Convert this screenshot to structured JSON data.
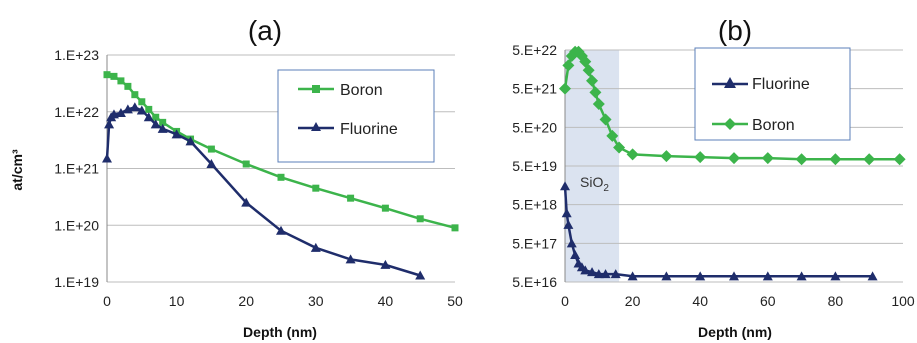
{
  "chart_data": [
    {
      "type": "scatter",
      "panel_label": "(a)",
      "xlabel": "Depth  (nm)",
      "ylabel": "at/cm³",
      "xlim": [
        0,
        50
      ],
      "ylim": [
        1e+19,
        1e+23
      ],
      "yscale": "log",
      "xticks": [
        "0",
        "10",
        "20",
        "30",
        "40",
        "50"
      ],
      "yticks": [
        "1.E+19",
        "1.E+20",
        "1.E+21",
        "1.E+22",
        "1.E+23"
      ],
      "grid": "horizontal",
      "legend_position": "top-right",
      "series": [
        {
          "name": "Boron",
          "marker": "square",
          "color": "#3cb44b",
          "x": [
            0,
            1,
            2,
            3,
            4,
            5,
            6,
            7,
            8,
            10,
            12,
            15,
            20,
            25,
            30,
            35,
            40,
            45,
            50
          ],
          "y": [
            4.5e+22,
            4.2e+22,
            3.5e+22,
            2.8e+22,
            2e+22,
            1.5e+22,
            1.1e+22,
            8e+21,
            6.5e+21,
            4.5e+21,
            3.3e+21,
            2.2e+21,
            1.2e+21,
            7e+20,
            4.5e+20,
            3e+20,
            2e+20,
            1.3e+20,
            9e+19
          ]
        },
        {
          "name": "Fluorine",
          "marker": "triangle",
          "color": "#1f2d6b",
          "x": [
            0,
            0.3,
            0.6,
            1,
            2,
            3,
            4,
            5,
            6,
            7,
            8,
            10,
            12,
            15,
            20,
            25,
            30,
            35,
            40,
            45
          ],
          "y": [
            1.5e+21,
            6e+21,
            8e+21,
            9e+21,
            9.5e+21,
            1.1e+22,
            1.2e+22,
            1.05e+22,
            8e+21,
            6e+21,
            5e+21,
            4e+21,
            3e+21,
            1.2e+21,
            2.5e+20,
            8e+19,
            4e+19,
            2.5e+19,
            2e+19,
            1.3e+19
          ]
        }
      ]
    },
    {
      "type": "scatter",
      "panel_label": "(b)",
      "xlabel": "Depth (nm)",
      "xlim": [
        0,
        100
      ],
      "ylim": [
        5e+16,
        5e+22
      ],
      "yscale": "log",
      "xticks": [
        "0",
        "20",
        "40",
        "60",
        "80",
        "100"
      ],
      "yticks": [
        "5.E+16",
        "5.E+17",
        "5.E+18",
        "5.E+19",
        "5.E+20",
        "5.E+21",
        "5.E+22"
      ],
      "grid": "horizontal",
      "legend_position": "top-right",
      "shaded_region": {
        "x": [
          0,
          16
        ],
        "label": "SiO",
        "label_sub": "2",
        "color": "#dbe3f0"
      },
      "series": [
        {
          "name": "Fluorine",
          "marker": "triangle",
          "color": "#1f2d6b",
          "x": [
            0,
            0.5,
            1,
            2,
            3,
            4,
            5,
            6,
            8,
            10,
            12,
            15,
            20,
            30,
            40,
            50,
            60,
            70,
            80,
            91
          ],
          "y": [
            1.5e+19,
            3e+18,
            1.5e+18,
            5e+17,
            2.5e+17,
            1.5e+17,
            1.2e+17,
            1e+17,
            9e+16,
            8e+16,
            8e+16,
            8e+16,
            7e+16,
            7e+16,
            7e+16,
            7e+16,
            7e+16,
            7e+16,
            7e+16,
            7e+16
          ]
        },
        {
          "name": "Boron",
          "marker": "diamond",
          "color": "#3cb44b",
          "x": [
            0,
            1,
            2,
            3,
            4,
            5,
            6,
            7,
            8,
            9,
            10,
            12,
            14,
            16,
            20,
            30,
            40,
            50,
            60,
            70,
            80,
            90,
            99
          ],
          "y": [
            5e+21,
            2e+22,
            3.5e+22,
            4.5e+22,
            4.5e+22,
            3.5e+22,
            2.5e+22,
            1.5e+22,
            8e+21,
            4e+21,
            2e+21,
            8e+20,
            3e+20,
            1.5e+20,
            1e+20,
            9e+19,
            8.5e+19,
            8e+19,
            8e+19,
            7.5e+19,
            7.5e+19,
            7.5e+19,
            7.5e+19
          ]
        }
      ]
    }
  ]
}
